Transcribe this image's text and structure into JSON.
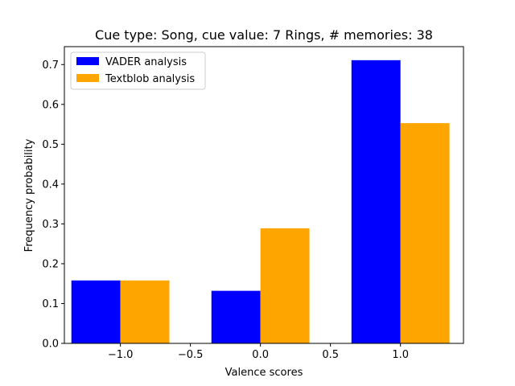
{
  "chart_data": {
    "type": "bar",
    "title": "Cue type: Song, cue value: 7 Rings, # memories: 38",
    "xlabel": "Valence scores",
    "ylabel": "Frequency probability",
    "xlim": [
      -1.4,
      1.45
    ],
    "ylim": [
      0,
      0.745
    ],
    "xticks": [
      {
        "value": -1.0,
        "label": "−1.0"
      },
      {
        "value": -0.5,
        "label": "−0.5"
      },
      {
        "value": 0.0,
        "label": "0.0"
      },
      {
        "value": 0.5,
        "label": "0.5"
      },
      {
        "value": 1.0,
        "label": "1.0"
      }
    ],
    "yticks": [
      {
        "value": 0.0,
        "label": "0.0"
      },
      {
        "value": 0.1,
        "label": "0.1"
      },
      {
        "value": 0.2,
        "label": "0.2"
      },
      {
        "value": 0.3,
        "label": "0.3"
      },
      {
        "value": 0.4,
        "label": "0.4"
      },
      {
        "value": 0.5,
        "label": "0.5"
      },
      {
        "value": 0.6,
        "label": "0.6"
      },
      {
        "value": 0.7,
        "label": "0.7"
      }
    ],
    "bar_width": 0.35,
    "grid": false,
    "legend_position": "upper-left",
    "series": [
      {
        "name": "VADER analysis",
        "color": "#0000ff",
        "x": [
          -1.175,
          -0.175,
          0.825
        ],
        "values": [
          0.158,
          0.132,
          0.711
        ]
      },
      {
        "name": "Textblob analysis",
        "color": "#ffa500",
        "x": [
          -0.825,
          0.175,
          1.175
        ],
        "values": [
          0.158,
          0.289,
          0.553
        ]
      }
    ]
  }
}
